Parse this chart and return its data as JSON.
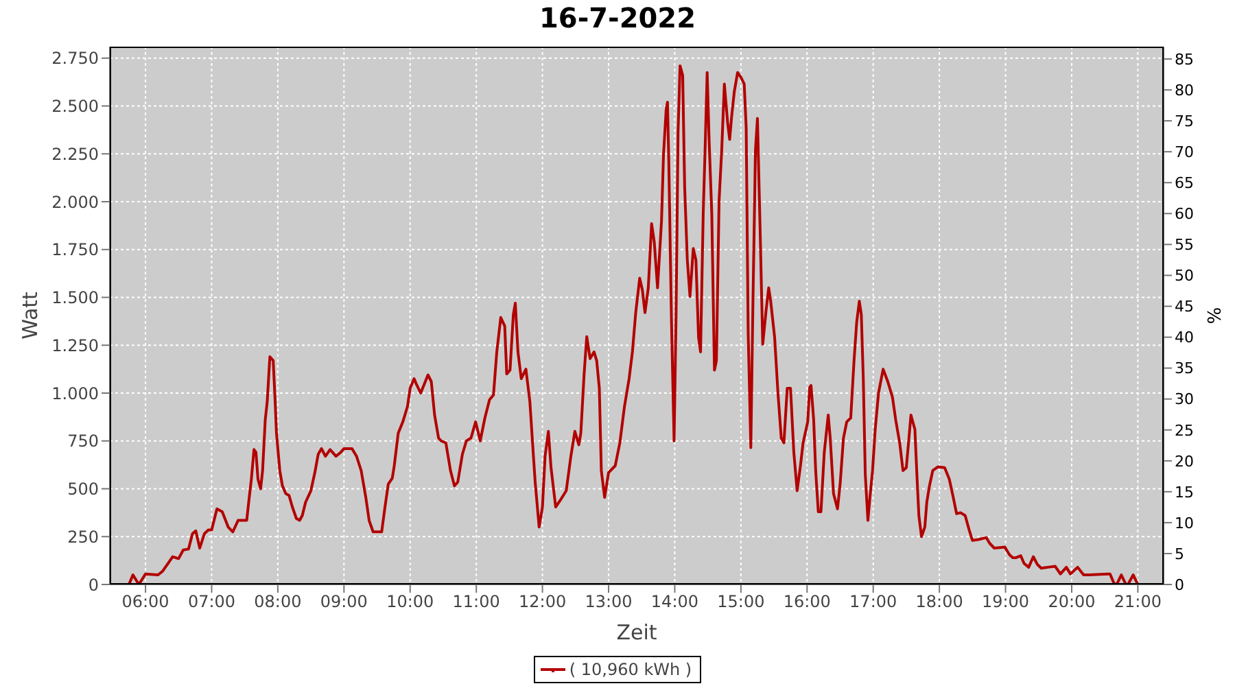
{
  "chart_data": {
    "type": "line",
    "title": "16-7-2022",
    "xlabel": "Zeit",
    "ylabel": "Watt",
    "y2label": "%",
    "x": [
      5.75,
      5.81,
      5.9,
      6,
      6.19,
      6.26,
      6.36,
      6.41,
      6.5,
      6.57,
      6.65,
      6.71,
      6.76,
      6.82,
      6.89,
      6.95,
      7,
      7.08,
      7.16,
      7.25,
      7.32,
      7.4,
      7.53,
      7.56,
      7.6,
      7.64,
      7.67,
      7.7,
      7.74,
      7.77,
      7.81,
      7.84,
      7.88,
      7.93,
      7.96,
      7.98,
      8.03,
      8.07,
      8.12,
      8.17,
      8.22,
      8.28,
      8.33,
      8.37,
      8.42,
      8.5,
      8.56,
      8.61,
      8.66,
      8.72,
      8.79,
      8.88,
      8.95,
      9,
      9.12,
      9.19,
      9.26,
      9.33,
      9.38,
      9.44,
      9.51,
      9.57,
      9.62,
      9.67,
      9.73,
      9.76,
      9.82,
      9.89,
      9.96,
      10,
      10.06,
      10.09,
      10.16,
      10.27,
      10.32,
      10.37,
      10.43,
      10.47,
      10.54,
      10.61,
      10.67,
      10.72,
      10.79,
      10.85,
      10.92,
      10.99,
      11.06,
      11.13,
      11.2,
      11.26,
      11.31,
      11.37,
      11.43,
      11.46,
      11.51,
      11.56,
      11.59,
      11.63,
      11.68,
      11.75,
      11.81,
      11.86,
      11.89,
      11.95,
      12,
      12.04,
      12.09,
      12.13,
      12.2,
      12.27,
      12.36,
      12.43,
      12.49,
      12.55,
      12.58,
      12.63,
      12.67,
      12.72,
      12.78,
      12.82,
      12.86,
      12.89,
      12.94,
      13,
      13.1,
      13.17,
      13.24,
      13.31,
      13.36,
      13.41,
      13.47,
      13.51,
      13.55,
      13.6,
      13.65,
      13.69,
      13.74,
      13.8,
      13.83,
      13.87,
      13.89,
      13.91,
      13.95,
      13.99,
      14.02,
      14.05,
      14.08,
      14.12,
      14.15,
      14.19,
      14.23,
      14.28,
      14.32,
      14.36,
      14.39,
      14.43,
      14.46,
      14.49,
      14.52,
      14.56,
      14.6,
      14.63,
      14.67,
      14.71,
      14.75,
      14.8,
      14.83,
      14.86,
      14.9,
      14.95,
      15,
      15.05,
      15.08,
      15.11,
      15.15,
      15.18,
      15.22,
      15.25,
      15.29,
      15.33,
      15.38,
      15.42,
      15.45,
      15.51,
      15.56,
      15.61,
      15.65,
      15.7,
      15.75,
      15.8,
      15.85,
      15.9,
      15.94,
      16.01,
      16.04,
      16.06,
      16.1,
      16.13,
      16.17,
      16.21,
      16.26,
      16.32,
      16.35,
      16.4,
      16.46,
      16.5,
      16.55,
      16.6,
      16.66,
      16.71,
      16.75,
      16.79,
      16.82,
      16.85,
      16.88,
      16.92,
      16.95,
      16.99,
      17.03,
      17.08,
      17.15,
      17.22,
      17.29,
      17.34,
      17.4,
      17.45,
      17.5,
      17.54,
      17.57,
      17.63,
      17.66,
      17.69,
      17.73,
      17.78,
      17.81,
      17.85,
      17.9,
      17.98,
      18.08,
      18.15,
      18.21,
      18.26,
      18.32,
      18.39,
      18.45,
      18.5,
      18.59,
      18.71,
      18.76,
      18.83,
      18.99,
      19.06,
      19.11,
      19.16,
      19.23,
      19.28,
      19.35,
      19.42,
      19.48,
      19.54,
      19.64,
      19.75,
      19.83,
      19.92,
      19.98,
      20.09,
      20.18,
      20.26,
      20.54,
      20.58,
      20.64,
      20.68,
      20.75,
      20.82,
      20.85,
      20.93,
      21,
      21.09
    ],
    "series": [
      {
        "name": "( 10,960 kWh )",
        "color": "#b30000",
        "values": [
          0,
          50,
          0,
          55,
          50,
          70,
          120,
          145,
          135,
          180,
          185,
          265,
          280,
          190,
          265,
          285,
          285,
          395,
          380,
          300,
          275,
          335,
          335,
          430,
          550,
          705,
          690,
          550,
          500,
          595,
          860,
          955,
          1190,
          1170,
          955,
          790,
          595,
          515,
          475,
          465,
          405,
          345,
          335,
          360,
          430,
          490,
          585,
          680,
          710,
          670,
          705,
          670,
          690,
          710,
          710,
          670,
          595,
          455,
          335,
          275,
          275,
          275,
          405,
          525,
          555,
          620,
          790,
          850,
          930,
          1025,
          1075,
          1050,
          1000,
          1095,
          1060,
          885,
          765,
          750,
          740,
          595,
          515,
          535,
          680,
          750,
          765,
          850,
          750,
          870,
          965,
          990,
          1215,
          1395,
          1350,
          1100,
          1120,
          1410,
          1470,
          1215,
          1075,
          1125,
          955,
          690,
          535,
          300,
          405,
          670,
          800,
          610,
          405,
          440,
          490,
          670,
          800,
          730,
          790,
          1100,
          1295,
          1180,
          1215,
          1170,
          1025,
          595,
          455,
          585,
          620,
          740,
          930,
          1075,
          1215,
          1420,
          1600,
          1540,
          1420,
          1550,
          1885,
          1790,
          1550,
          1900,
          2245,
          2480,
          2520,
          2210,
          1385,
          750,
          1410,
          2365,
          2710,
          2660,
          2075,
          1695,
          1505,
          1755,
          1695,
          1290,
          1215,
          1935,
          2290,
          2675,
          2315,
          1935,
          1120,
          1170,
          2005,
          2270,
          2615,
          2410,
          2325,
          2445,
          2575,
          2675,
          2650,
          2615,
          2385,
          1315,
          715,
          1430,
          2270,
          2435,
          1860,
          1255,
          1430,
          1550,
          1480,
          1290,
          1000,
          765,
          740,
          1025,
          1025,
          690,
          490,
          620,
          740,
          850,
          1030,
          1040,
          860,
          595,
          380,
          380,
          690,
          885,
          765,
          475,
          395,
          525,
          765,
          850,
          870,
          1170,
          1370,
          1480,
          1410,
          1075,
          575,
          335,
          455,
          595,
          810,
          1000,
          1125,
          1060,
          980,
          860,
          740,
          595,
          610,
          765,
          885,
          810,
          575,
          360,
          250,
          300,
          430,
          515,
          595,
          615,
          610,
          550,
          455,
          370,
          375,
          360,
          285,
          230,
          235,
          245,
          215,
          190,
          195,
          155,
          140,
          140,
          150,
          110,
          90,
          145,
          105,
          85,
          90,
          95,
          55,
          90,
          55,
          90,
          50,
          50,
          55,
          55,
          5,
          0,
          50,
          0,
          0,
          50,
          0,
          0
        ]
      }
    ],
    "xlim": [
      5.46,
      21.39
    ],
    "xticks": [
      {
        "value": 6,
        "label": "06:00"
      },
      {
        "value": 7,
        "label": "07:00"
      },
      {
        "value": 8,
        "label": "08:00"
      },
      {
        "value": 9,
        "label": "09:00"
      },
      {
        "value": 10,
        "label": "10:00"
      },
      {
        "value": 11,
        "label": "11:00"
      },
      {
        "value": 12,
        "label": "12:00"
      },
      {
        "value": 13,
        "label": "13:00"
      },
      {
        "value": 14,
        "label": "14:00"
      },
      {
        "value": 15,
        "label": "15:00"
      },
      {
        "value": 16,
        "label": "16:00"
      },
      {
        "value": 17,
        "label": "17:00"
      },
      {
        "value": 18,
        "label": "18:00"
      },
      {
        "value": 19,
        "label": "19:00"
      },
      {
        "value": 20,
        "label": "20:00"
      },
      {
        "value": 21,
        "label": "21:00"
      }
    ],
    "ylim": [
      0,
      2810
    ],
    "yticks": [
      0,
      250,
      500,
      750,
      {
        "value": 1000,
        "label": "1.000"
      },
      {
        "value": 1250,
        "label": "1.250"
      },
      {
        "value": 1500,
        "label": "1.500"
      },
      {
        "value": 1750,
        "label": "1.750"
      },
      {
        "value": 2000,
        "label": "2.000"
      },
      {
        "value": 2250,
        "label": "2.250"
      },
      {
        "value": 2500,
        "label": "2.500"
      },
      {
        "value": 2750,
        "label": "2.750"
      }
    ],
    "y2lim": [
      0,
      87
    ],
    "y2ticks": [
      0,
      5,
      10,
      15,
      20,
      25,
      30,
      35,
      40,
      45,
      50,
      55,
      60,
      65,
      70,
      75,
      80,
      85
    ],
    "grid": true,
    "legend": "bottom"
  }
}
